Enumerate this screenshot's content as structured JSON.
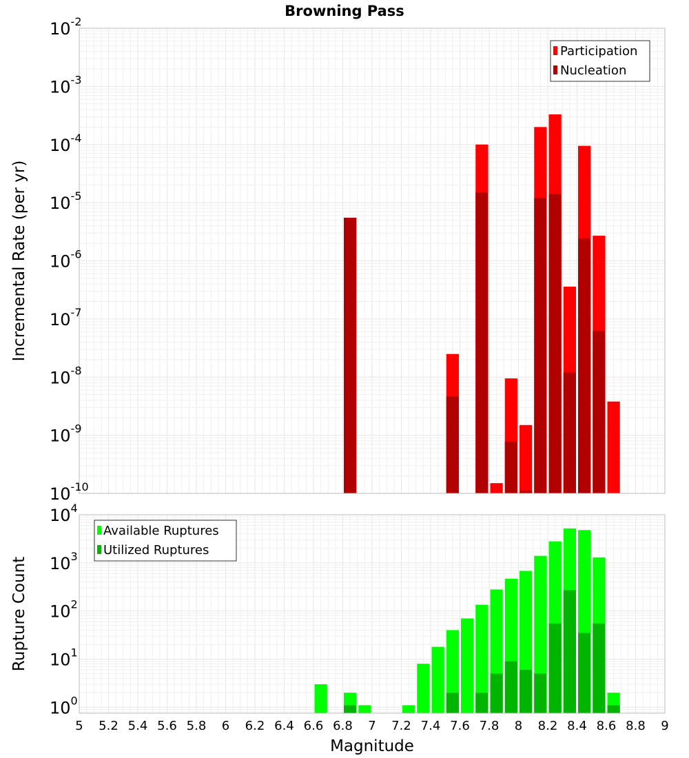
{
  "chart_data": [
    {
      "type": "bar",
      "title": "Browning Pass",
      "xlabel": "",
      "ylabel": "Incremental Rate (per yr)",
      "yscale": "log",
      "ylim": [
        1e-10,
        0.01
      ],
      "xlim": [
        5,
        9
      ],
      "bar_width": 0.1,
      "x_ticks": [
        "5",
        "5.2",
        "5.4",
        "5.6",
        "5.8",
        "6",
        "6.2",
        "6.4",
        "6.6",
        "6.8",
        "7",
        "7.2",
        "7.4",
        "7.6",
        "7.8",
        "8",
        "8.2",
        "8.4",
        "8.6",
        "8.8",
        "9"
      ],
      "y_ticks": [
        {
          "base": "10",
          "exp": "-2"
        },
        {
          "base": "10",
          "exp": "-3"
        },
        {
          "base": "10",
          "exp": "-4"
        },
        {
          "base": "10",
          "exp": "-5"
        },
        {
          "base": "10",
          "exp": "-6"
        },
        {
          "base": "10",
          "exp": "-7"
        },
        {
          "base": "10",
          "exp": "-8"
        },
        {
          "base": "10",
          "exp": "-9"
        },
        {
          "base": "10",
          "exp": "-10"
        }
      ],
      "legend_position": "top-right",
      "series": [
        {
          "name": "Participation",
          "color": "#ff0000",
          "x": [
            6.85,
            7.55,
            7.75,
            7.85,
            7.95,
            8.05,
            8.15,
            8.25,
            8.35,
            8.45,
            8.55,
            8.65
          ],
          "values": [
            5.5e-06,
            2.5e-08,
            0.0001,
            1.5e-10,
            9.5e-09,
            1.5e-09,
            0.0002,
            0.00033,
            3.6e-07,
            9.5e-05,
            2.7e-06,
            3.8e-09
          ]
        },
        {
          "name": "Nucleation",
          "color": "#b00000",
          "x": [
            6.85,
            7.55,
            7.75,
            7.95,
            8.05,
            8.15,
            8.25,
            8.35,
            8.45,
            8.55
          ],
          "values": [
            5.5e-06,
            4.7e-09,
            1.5e-05,
            7.8e-10,
            1.1e-10,
            1.2e-05,
            1.4e-05,
            1.2e-08,
            2.4e-06,
            6.2e-08
          ]
        }
      ]
    },
    {
      "type": "bar",
      "title": "",
      "xlabel": "Magnitude",
      "ylabel": "Rupture Count",
      "yscale": "log",
      "ylim": [
        0.75,
        10000
      ],
      "xlim": [
        5,
        9
      ],
      "bar_width": 0.1,
      "y_ticks": [
        {
          "base": "10",
          "exp": "4"
        },
        {
          "base": "10",
          "exp": "3"
        },
        {
          "base": "10",
          "exp": "2"
        },
        {
          "base": "10",
          "exp": "1"
        },
        {
          "base": "10",
          "exp": "0"
        }
      ],
      "legend_position": "top-left",
      "series": [
        {
          "name": "Available Ruptures",
          "color": "#00ff00",
          "x": [
            6.65,
            6.85,
            6.95,
            7.25,
            7.35,
            7.45,
            7.55,
            7.65,
            7.75,
            7.85,
            7.95,
            8.05,
            8.15,
            8.25,
            8.35,
            8.45,
            8.55,
            8.65
          ],
          "values": [
            3,
            2,
            1.1,
            1.1,
            8,
            18,
            40,
            70,
            135,
            280,
            470,
            680,
            1400,
            2800,
            5200,
            4800,
            1300,
            2
          ]
        },
        {
          "name": "Utilized Ruptures",
          "color": "#00b400",
          "x": [
            6.85,
            7.55,
            7.75,
            7.85,
            7.95,
            8.05,
            8.15,
            8.25,
            8.35,
            8.45,
            8.55,
            8.65
          ],
          "values": [
            1.1,
            2,
            2,
            5,
            9,
            6,
            5,
            55,
            270,
            35,
            55,
            1.1
          ]
        }
      ]
    }
  ]
}
